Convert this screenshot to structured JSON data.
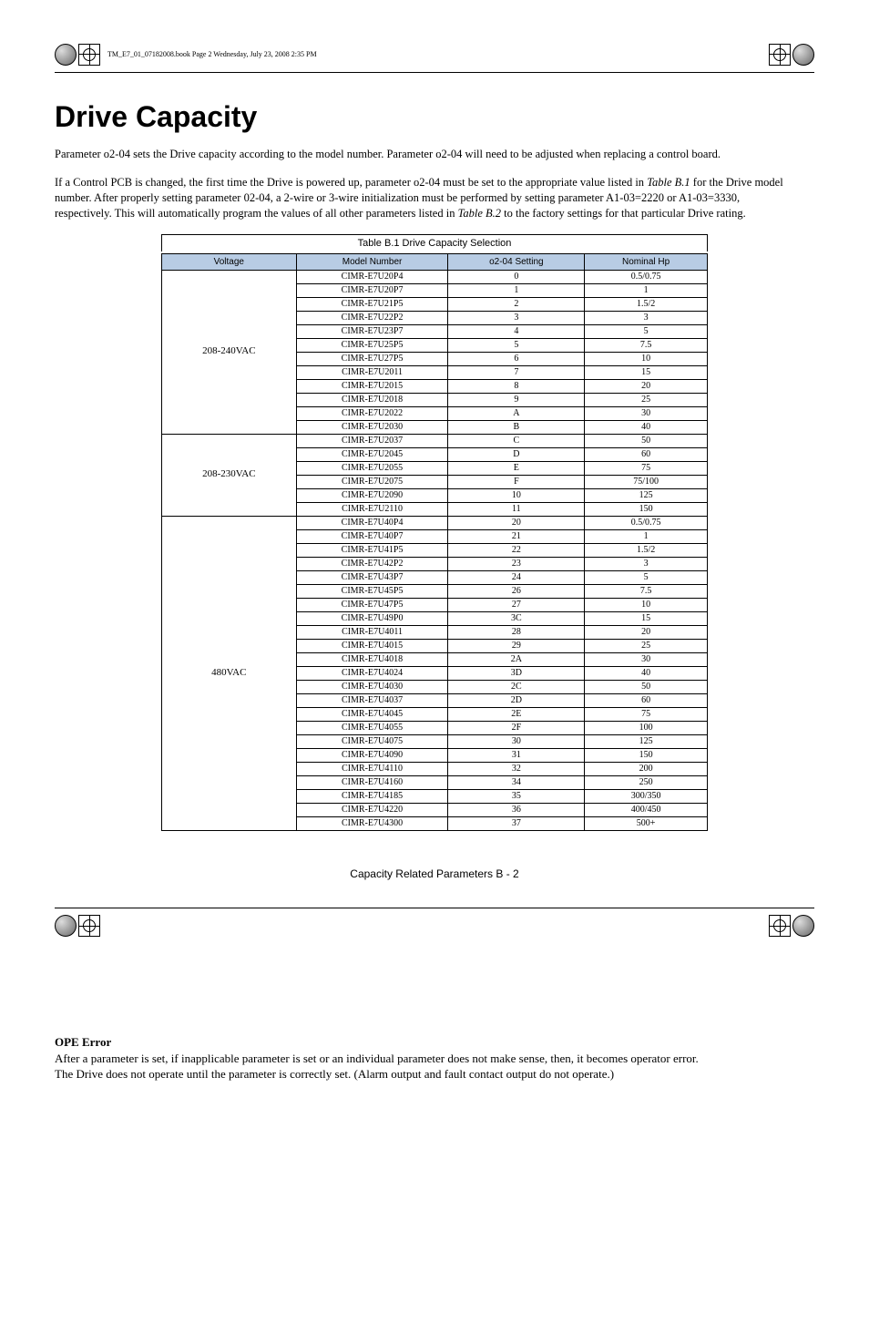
{
  "crop": {
    "book_info": "TM_E7_01_07182008.book  Page 2  Wednesday, July 23, 2008  2:35 PM"
  },
  "title": "Drive Capacity",
  "paragraphs": {
    "p1": "Parameter o2-04 sets the Drive capacity according to the model number. Parameter o2-04 will need to be adjusted when replacing a control board.",
    "p2_1": "If a Control PCB is changed, the first time the Drive is powered up, parameter o2-04 must be set to the appropriate value listed in ",
    "p2_ref1": "Table B.1",
    "p2_2": " for the Drive model number. After properly setting parameter 02-04, a 2-wire or 3-wire initialization must be performed by setting parameter A1-03=2220 or A1-03=3330, respectively. This will automatically program the values of all other parameters listed in ",
    "p2_ref2": "Table B.2",
    "p2_3": " to the factory settings for that particular Drive rating."
  },
  "table": {
    "caption": "Table B.1 Drive Capacity Selection",
    "headers": {
      "voltage": "Voltage",
      "model": "Model Number",
      "setting": "o2-04 Setting",
      "hp": "Nominal Hp"
    },
    "groups": [
      {
        "voltage": "208-240VAC",
        "rows": [
          {
            "model": "CIMR-E7U20P4",
            "setting": "0",
            "hp": "0.5/0.75"
          },
          {
            "model": "CIMR-E7U20P7",
            "setting": "1",
            "hp": "1"
          },
          {
            "model": "CIMR-E7U21P5",
            "setting": "2",
            "hp": "1.5/2"
          },
          {
            "model": "CIMR-E7U22P2",
            "setting": "3",
            "hp": "3"
          },
          {
            "model": "CIMR-E7U23P7",
            "setting": "4",
            "hp": "5"
          },
          {
            "model": "CIMR-E7U25P5",
            "setting": "5",
            "hp": "7.5"
          },
          {
            "model": "CIMR-E7U27P5",
            "setting": "6",
            "hp": "10"
          },
          {
            "model": "CIMR-E7U2011",
            "setting": "7",
            "hp": "15"
          },
          {
            "model": "CIMR-E7U2015",
            "setting": "8",
            "hp": "20"
          },
          {
            "model": "CIMR-E7U2018",
            "setting": "9",
            "hp": "25"
          },
          {
            "model": "CIMR-E7U2022",
            "setting": "A",
            "hp": "30"
          },
          {
            "model": "CIMR-E7U2030",
            "setting": "B",
            "hp": "40"
          }
        ]
      },
      {
        "voltage": "208-230VAC",
        "rows": [
          {
            "model": "CIMR-E7U2037",
            "setting": "C",
            "hp": "50"
          },
          {
            "model": "CIMR-E7U2045",
            "setting": "D",
            "hp": "60"
          },
          {
            "model": "CIMR-E7U2055",
            "setting": "E",
            "hp": "75"
          },
          {
            "model": "CIMR-E7U2075",
            "setting": "F",
            "hp": "75/100"
          },
          {
            "model": "CIMR-E7U2090",
            "setting": "10",
            "hp": "125"
          },
          {
            "model": "CIMR-E7U2110",
            "setting": "11",
            "hp": "150"
          }
        ]
      },
      {
        "voltage": "480VAC",
        "rows": [
          {
            "model": "CIMR-E7U40P4",
            "setting": "20",
            "hp": "0.5/0.75"
          },
          {
            "model": "CIMR-E7U40P7",
            "setting": "21",
            "hp": "1"
          },
          {
            "model": "CIMR-E7U41P5",
            "setting": "22",
            "hp": "1.5/2"
          },
          {
            "model": "CIMR-E7U42P2",
            "setting": "23",
            "hp": "3"
          },
          {
            "model": "CIMR-E7U43P7",
            "setting": "24",
            "hp": "5"
          },
          {
            "model": "CIMR-E7U45P5",
            "setting": "26",
            "hp": "7.5"
          },
          {
            "model": "CIMR-E7U47P5",
            "setting": "27",
            "hp": "10"
          },
          {
            "model": "CIMR-E7U49P0",
            "setting": "3C",
            "hp": "15"
          },
          {
            "model": "CIMR-E7U4011",
            "setting": "28",
            "hp": "20"
          },
          {
            "model": "CIMR-E7U4015",
            "setting": "29",
            "hp": "25"
          },
          {
            "model": "CIMR-E7U4018",
            "setting": "2A",
            "hp": "30"
          },
          {
            "model": "CIMR-E7U4024",
            "setting": "3D",
            "hp": "40"
          },
          {
            "model": "CIMR-E7U4030",
            "setting": "2C",
            "hp": "50"
          },
          {
            "model": "CIMR-E7U4037",
            "setting": "2D",
            "hp": "60"
          },
          {
            "model": "CIMR-E7U4045",
            "setting": "2E",
            "hp": "75"
          },
          {
            "model": "CIMR-E7U4055",
            "setting": "2F",
            "hp": "100"
          },
          {
            "model": "CIMR-E7U4075",
            "setting": "30",
            "hp": "125"
          },
          {
            "model": "CIMR-E7U4090",
            "setting": "31",
            "hp": "150"
          },
          {
            "model": "CIMR-E7U4110",
            "setting": "32",
            "hp": "200"
          },
          {
            "model": "CIMR-E7U4160",
            "setting": "34",
            "hp": "250"
          },
          {
            "model": "CIMR-E7U4185",
            "setting": "35",
            "hp": "300/350"
          },
          {
            "model": "CIMR-E7U4220",
            "setting": "36",
            "hp": "400/450"
          },
          {
            "model": "CIMR-E7U4300",
            "setting": "37",
            "hp": "500+"
          }
        ]
      }
    ]
  },
  "footer": {
    "text": "Capacity Related Parameters   B - 2"
  },
  "ope": {
    "title": "OPE Error",
    "p1": "After a parameter is set, if inapplicable parameter is set or an individual parameter does not make sense, then, it becomes operator error.",
    "p2": "The Drive does not operate until the parameter is correctly set. (Alarm output and fault contact output do not operate.)"
  },
  "colors": {
    "header_bg": "#b8cce4",
    "border": "#000000",
    "text": "#000000",
    "background": "#ffffff"
  }
}
